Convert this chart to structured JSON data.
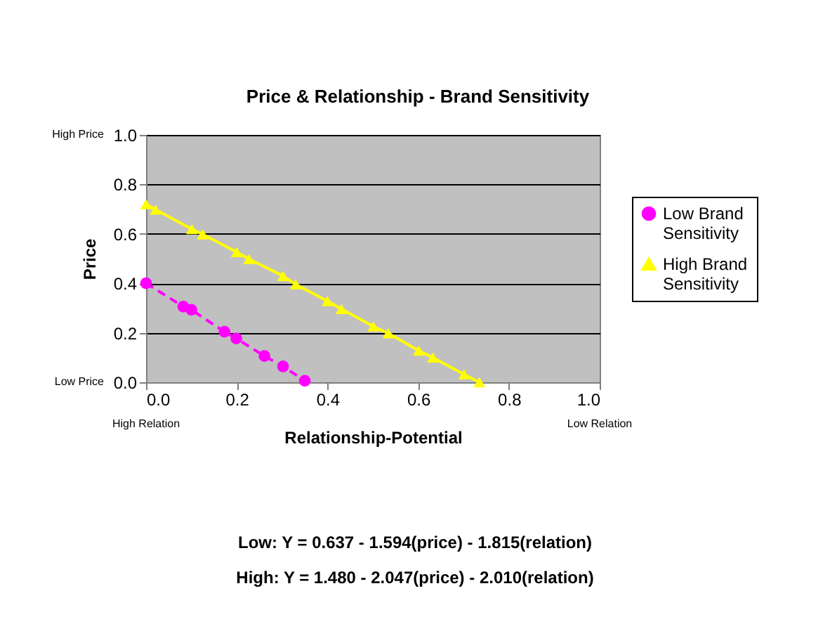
{
  "chart_data": {
    "type": "line",
    "title": "Price & Relationship - Brand Sensitivity",
    "xlabel": "Relationship-Potential",
    "ylabel": "Price",
    "series": [
      {
        "name": "Low Brand Sensitivity",
        "color": "#ff00ff",
        "marker": "circle",
        "line_style": "dashed",
        "x": [
          0,
          0.082,
          0.1,
          0.173,
          0.199,
          0.261,
          0.302,
          0.35
        ],
        "values": [
          0.4,
          0.306,
          0.293,
          0.204,
          0.177,
          0.106,
          0.064,
          0.006
        ]
      },
      {
        "name": "High Brand Sensitivity",
        "color": "#ffff00",
        "marker": "triangle",
        "line_style": "solid",
        "x": [
          0,
          0.021,
          0.101,
          0.125,
          0.2,
          0.227,
          0.302,
          0.33,
          0.4,
          0.431,
          0.501,
          0.534,
          0.601,
          0.632,
          0.701,
          0.735
        ],
        "values": [
          0.72,
          0.698,
          0.619,
          0.598,
          0.526,
          0.498,
          0.43,
          0.396,
          0.328,
          0.296,
          0.226,
          0.198,
          0.128,
          0.1,
          0.032,
          0
        ]
      }
    ],
    "xlim": [
      0,
      1
    ],
    "ylim": [
      0,
      1
    ],
    "xticks": [
      {
        "value": 0,
        "label": "0.0"
      },
      0.2,
      0.4,
      0.6,
      0.8,
      {
        "value": 1,
        "label": "1.0"
      }
    ],
    "yticks": [
      {
        "value": 0,
        "label": "0.0"
      },
      0.2,
      0.4,
      0.6,
      0.8,
      {
        "value": 1,
        "label": "1.0"
      }
    ],
    "grid": "y",
    "legend": "right",
    "annotations": [
      "High Price",
      "Low Price",
      "High Relation",
      "Low Relation",
      "Low: Y = 0.637 - 1.594(price) - 1.815(relation)",
      "High: Y = 1.480 - 2.047(price) - 2.010(relation)"
    ]
  }
}
